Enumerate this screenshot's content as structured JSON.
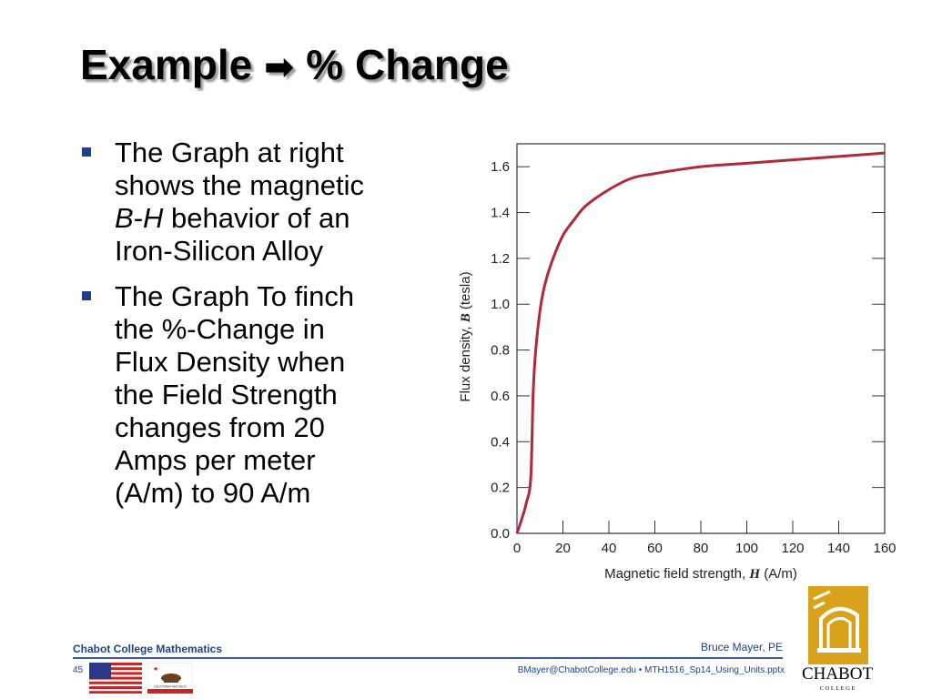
{
  "slide": {
    "title_left": "Example",
    "arrow_glyph": "➡",
    "title_right": "% Change"
  },
  "bullets": [
    {
      "lines": [
        "The Graph at right",
        "shows the magnetic",
        "behavior of an",
        "Iron-Silicon  Alloy"
      ],
      "italic_b": "B",
      "italic_dash": "-",
      "italic_h": "H"
    },
    {
      "lines": [
        "The Graph To finch",
        "the %-Change in",
        "Flux Density when",
        "the Field Strength",
        "changes from 20",
        "Amps per meter",
        "(A/m) to 90 A/m"
      ]
    }
  ],
  "chart_data": {
    "type": "line",
    "xlabel_prefix": "Magnetic field strength, ",
    "xlabel_symbol": "H",
    "xlabel_suffix": " (A/m)",
    "ylabel_prefix": "Flux density, ",
    "ylabel_symbol": "B",
    "ylabel_suffix": " (tesla)",
    "xlim": [
      0,
      160
    ],
    "ylim": [
      0,
      1.7
    ],
    "x_ticks": [
      0,
      20,
      40,
      60,
      80,
      100,
      120,
      140,
      160
    ],
    "x_tick_labels": [
      "0",
      "20",
      "40",
      "60",
      "80",
      "100",
      "120",
      "140",
      "160"
    ],
    "y_ticks": [
      0,
      0.2,
      0.4,
      0.6,
      0.8,
      1.0,
      1.2,
      1.4,
      1.6
    ],
    "y_tick_labels": [
      "0.0",
      "0.2",
      "0.4",
      "0.6",
      "0.8",
      "1.0",
      "1.2",
      "1.4",
      "1.6"
    ],
    "grid": false,
    "line_color": "#b0283a",
    "series": [
      {
        "x": [
          0,
          2,
          4,
          6,
          7,
          8,
          10,
          12,
          15,
          20,
          25,
          30,
          40,
          50,
          60,
          80,
          100,
          120,
          140,
          160
        ],
        "y": [
          0,
          0.06,
          0.13,
          0.24,
          0.6,
          0.78,
          0.97,
          1.08,
          1.18,
          1.3,
          1.37,
          1.43,
          1.5,
          1.55,
          1.57,
          1.6,
          1.615,
          1.63,
          1.645,
          1.66
        ]
      }
    ]
  },
  "footer": {
    "left": "Chabot College Mathematics",
    "right": "Bruce Mayer, PE",
    "page_number": "45",
    "email": "BMayer@ChabotCollege.edu  • MTH1516_Sp14_Using_Units.pptx",
    "flag_ca_text": "CALIFORNIA REPUBLIC"
  },
  "logo": {
    "name": "CHABOT",
    "sub": "C O L L E G E",
    "gold": "#d9a21b"
  },
  "colors": {
    "accent_blue": "#1f3f8f",
    "rule_blue": "#3b5ba8"
  }
}
